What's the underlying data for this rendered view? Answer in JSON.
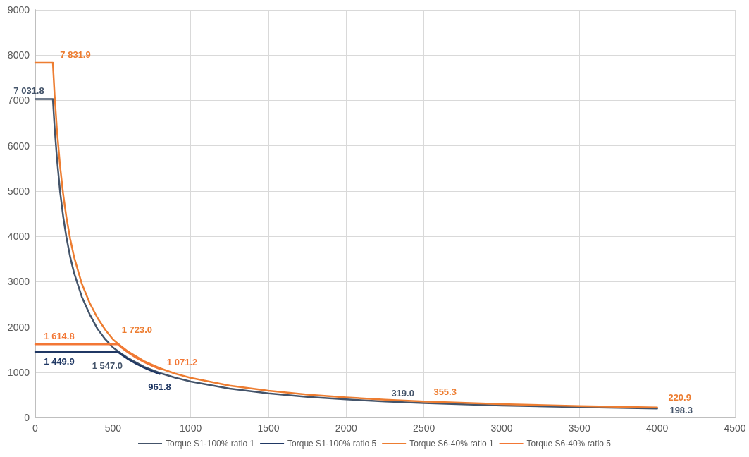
{
  "chart_data": {
    "type": "line",
    "xlim": [
      0,
      4500
    ],
    "xticks": [
      0,
      500,
      1000,
      1500,
      2000,
      2500,
      3000,
      3500,
      4000,
      4500
    ],
    "ylim": [
      0,
      9000
    ],
    "yticks": [
      0,
      1000,
      2000,
      3000,
      4000,
      5000,
      6000,
      7000,
      8000,
      9000
    ],
    "grid": true,
    "legend": "bottom",
    "marker": "none",
    "line_style": "solid",
    "series": [
      {
        "name": "Torque S1-100% ratio 1",
        "color": "#44546a",
        "x": [
          0,
          113.4,
          125,
          140,
          160,
          180,
          200,
          225,
          250,
          300,
          350,
          400,
          450,
          500,
          550,
          600,
          700,
          800,
          900,
          1000,
          1250,
          1500,
          1750,
          2000,
          2250,
          2500,
          3000,
          3500,
          4000
        ],
        "values": [
          7031.8,
          7031.8,
          6380,
          5700,
          4980,
          4430,
          3990,
          3540,
          3190,
          2660,
          2280,
          1960,
          1730,
          1547.0,
          1420,
          1305,
          1120,
          985,
          880,
          795,
          640,
          532,
          457,
          400,
          355,
          319.0,
          266,
          228,
          198.3
        ],
        "value_labels": [
          null,
          "7 031.8",
          null,
          null,
          null,
          null,
          null,
          null,
          null,
          null,
          null,
          null,
          null,
          "1 547.0",
          null,
          null,
          null,
          null,
          null,
          null,
          null,
          null,
          null,
          null,
          null,
          "319.0",
          null,
          null,
          "198.3"
        ]
      },
      {
        "name": "Torque S1-100% ratio 5",
        "color": "#203864",
        "x": [
          0,
          531,
          560,
          600,
          650,
          700,
          750,
          800
        ],
        "values": [
          1449.9,
          1449.9,
          1375,
          1283,
          1184,
          1100,
          1026,
          961.8
        ],
        "value_labels": [
          "1 449.9",
          null,
          null,
          null,
          null,
          null,
          null,
          "961.8"
        ]
      },
      {
        "name": "Torque S6-40% ratio 1",
        "color": "#ed7d31",
        "x": [
          0,
          113.4,
          125,
          140,
          160,
          180,
          200,
          225,
          250,
          300,
          350,
          400,
          450,
          500,
          550,
          600,
          700,
          800,
          900,
          1000,
          1250,
          1500,
          1750,
          2000,
          2250,
          2500,
          3000,
          3500,
          4000
        ],
        "values": [
          7831.9,
          7831.9,
          7090,
          6330,
          5540,
          4920,
          4430,
          3940,
          3540,
          2950,
          2530,
          2200,
          1940,
          1723.0,
          1580,
          1450,
          1245,
          1090,
          970,
          875,
          705,
          590,
          506,
          443,
          395,
          355.3,
          296,
          253,
          220.9
        ],
        "value_labels": [
          null,
          "7 831.9",
          null,
          null,
          null,
          null,
          null,
          null,
          null,
          null,
          null,
          null,
          null,
          "1 723.0",
          null,
          null,
          null,
          null,
          null,
          null,
          null,
          null,
          null,
          null,
          null,
          "355.3",
          null,
          null,
          "220.9"
        ]
      },
      {
        "name": "Torque S6-40% ratio 5",
        "color": "#f37735",
        "x": [
          0,
          531,
          560,
          600,
          650,
          700,
          750,
          800
        ],
        "values": [
          1614.8,
          1614.8,
          1531,
          1428,
          1318,
          1224,
          1142,
          1071.2
        ],
        "value_labels": [
          "1 614.8",
          null,
          null,
          null,
          null,
          null,
          null,
          "1 071.2"
        ]
      }
    ]
  }
}
